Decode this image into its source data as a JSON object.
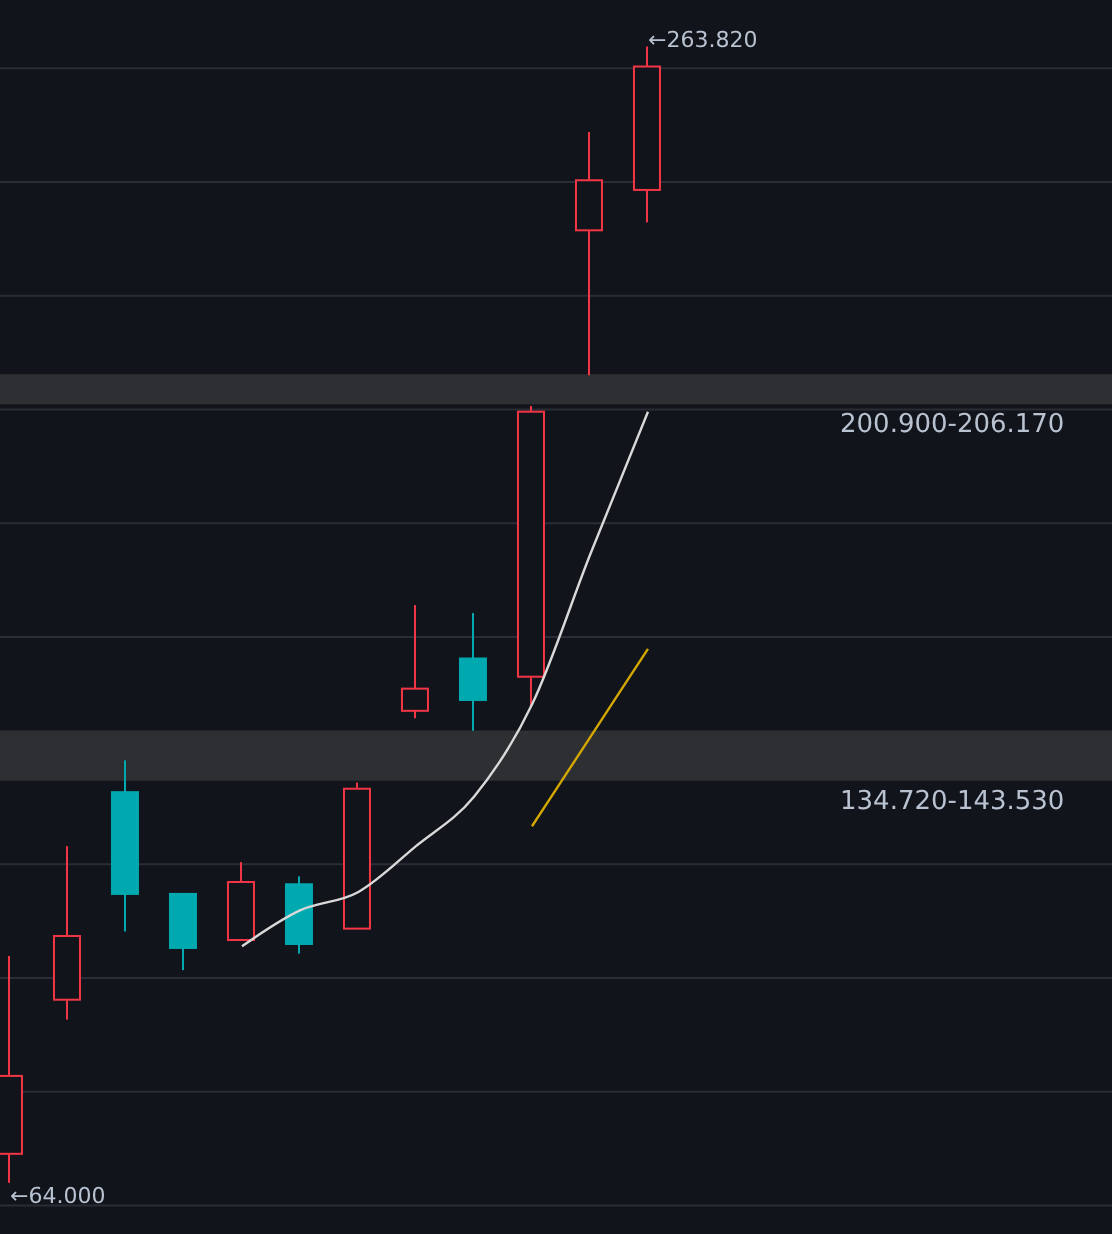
{
  "chart_data": {
    "type": "candlestick",
    "categories": [
      null,
      null,
      null,
      null,
      null,
      null,
      null,
      null,
      null,
      null,
      null,
      null
    ],
    "ohlc": [
      [
        69.1,
        103.9,
        64.0,
        82.8
      ],
      [
        96.2,
        123.2,
        92.7,
        107.4
      ],
      [
        132.7,
        138.3,
        108.2,
        114.8
      ],
      [
        114.8,
        114.8,
        101.4,
        105.3
      ],
      [
        106.7,
        120.4,
        106.7,
        116.9
      ],
      [
        116.5,
        117.9,
        104.3,
        106.0
      ],
      [
        108.7,
        134.4,
        108.7,
        133.3
      ],
      [
        147.0,
        165.6,
        145.7,
        150.9
      ],
      [
        156.2,
        164.2,
        143.5,
        148.9
      ],
      [
        153.0,
        200.6,
        147.8,
        199.6
      ],
      [
        231.5,
        248.8,
        206.0,
        240.3
      ],
      [
        238.6,
        263.82,
        232.9,
        260.3
      ]
    ],
    "colors": [
      "#f23645",
      "#f23645",
      "#00a9b0",
      "#00a9b0",
      "#f23645",
      "#00a9b0",
      "#f23645",
      "#f23645",
      "#00a9b0",
      "#f23645",
      "#f23645",
      "#f23645"
    ],
    "series": [
      {
        "type": "line",
        "color": "#d9d9d9",
        "values": [
          null,
          null,
          null,
          null,
          105.6,
          111.9,
          115.1,
          123.2,
          131.9,
          148.1,
          174.4,
          199.6
        ]
      },
      {
        "type": "line",
        "color": "#d4a800",
        "values": [
          null,
          null,
          null,
          null,
          null,
          null,
          null,
          null,
          null,
          126.7,
          142.3,
          157.9
        ]
      }
    ],
    "bands": [
      {
        "axis": "y",
        "from": 200.9,
        "to": 206.17,
        "label": "200.900-206.170",
        "color": "#2e2f33"
      },
      {
        "axis": "y",
        "from": 134.72,
        "to": 143.53,
        "label": "134.720-143.530",
        "color": "#2e2f33"
      }
    ],
    "annotations": [
      "←263.820",
      "←64.000"
    ],
    "ylim": [
      55,
      272
    ],
    "yticks": [
      {
        "value": 60,
        "label": null
      },
      {
        "value": 80,
        "label": null
      },
      {
        "value": 100,
        "label": null
      },
      {
        "value": 120,
        "label": null
      },
      {
        "value": 160,
        "label": null
      },
      {
        "value": 180,
        "label": null
      },
      {
        "value": 200,
        "label": null
      },
      {
        "value": 220,
        "label": null
      },
      {
        "value": 240,
        "label": null
      },
      {
        "value": 260,
        "label": null
      }
    ],
    "grid": "y"
  }
}
